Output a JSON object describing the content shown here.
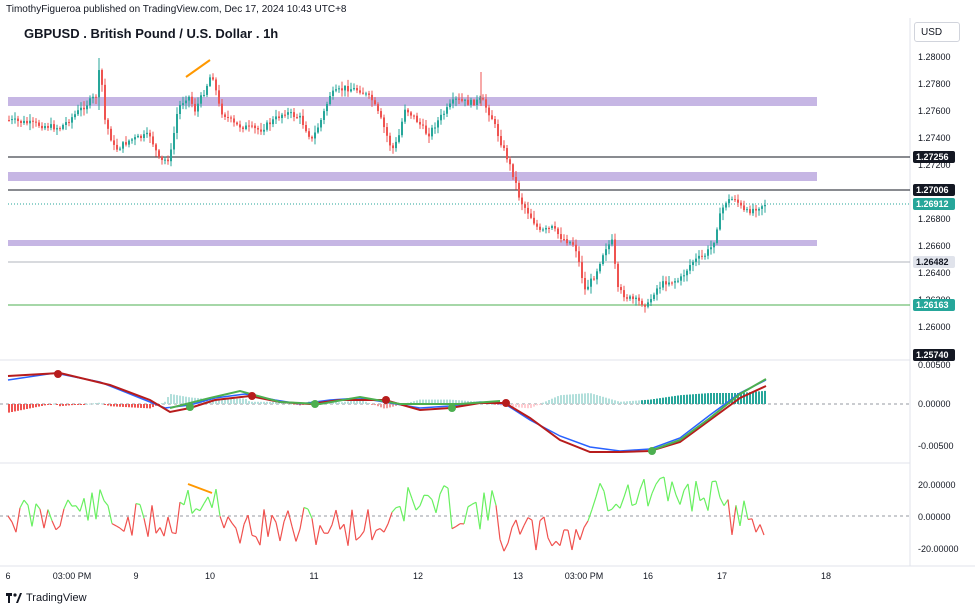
{
  "header": {
    "published_line": "TimothyFigueroa published on TradingView.com, Dec 17, 2024 10:43 UTC+8",
    "symbol_title": "GBPUSD . British Pound / U.S. Dollar . 1h",
    "currency": "USD"
  },
  "footer": {
    "brand": "TradingView"
  },
  "colors": {
    "up": "#26a69a",
    "down": "#ef5350",
    "zone": "#b39ddb",
    "macd_line": "#2962ff",
    "signal_line": "#b71c1c",
    "signal_green": "#4caf50",
    "osc_up": "#69f061",
    "osc_down": "#f0524f",
    "price_tag_dark": "#131722",
    "price_tag_green": "#26a69a",
    "price_tag_grey": "#e0e3eb"
  },
  "price_axis": {
    "ticks": [
      "1.28000",
      "1.27800",
      "1.27600",
      "1.27400",
      "1.27200",
      "1.26800",
      "1.26600",
      "1.26400",
      "1.26200",
      "1.26000"
    ],
    "tags": [
      {
        "label": "1.27256",
        "style": "dark"
      },
      {
        "label": "1.27006",
        "style": "dark"
      },
      {
        "label": "1.26912",
        "style": "green"
      },
      {
        "label": "1.26482",
        "style": "grey"
      },
      {
        "label": "1.26163",
        "style": "green"
      },
      {
        "label": "1.25740",
        "style": "dark"
      }
    ]
  },
  "macd_axis": {
    "ticks": [
      "0.00500",
      "0.00000",
      "-0.00500"
    ]
  },
  "osc_axis": {
    "ticks": [
      "20.00000",
      "0.00000",
      "-20.00000"
    ]
  },
  "time_axis": {
    "labels": [
      "6",
      "03:00 PM",
      "9",
      "10",
      "11",
      "12",
      "13",
      "03:00 PM",
      "16",
      "17",
      "18"
    ]
  },
  "chart_data": {
    "type": "candlestick",
    "symbol": "GBPUSD",
    "timeframe": "1h",
    "price_range": [
      1.2574,
      1.281
    ],
    "horizontal_lines": [
      1.27256,
      1.27006,
      1.26912,
      1.26482,
      1.26163
    ],
    "zones": [
      [
        1.2765,
        1.2772
      ],
      [
        1.2706,
        1.2713
      ],
      [
        1.2662,
        1.2666
      ]
    ],
    "last_price": 1.26912
  }
}
